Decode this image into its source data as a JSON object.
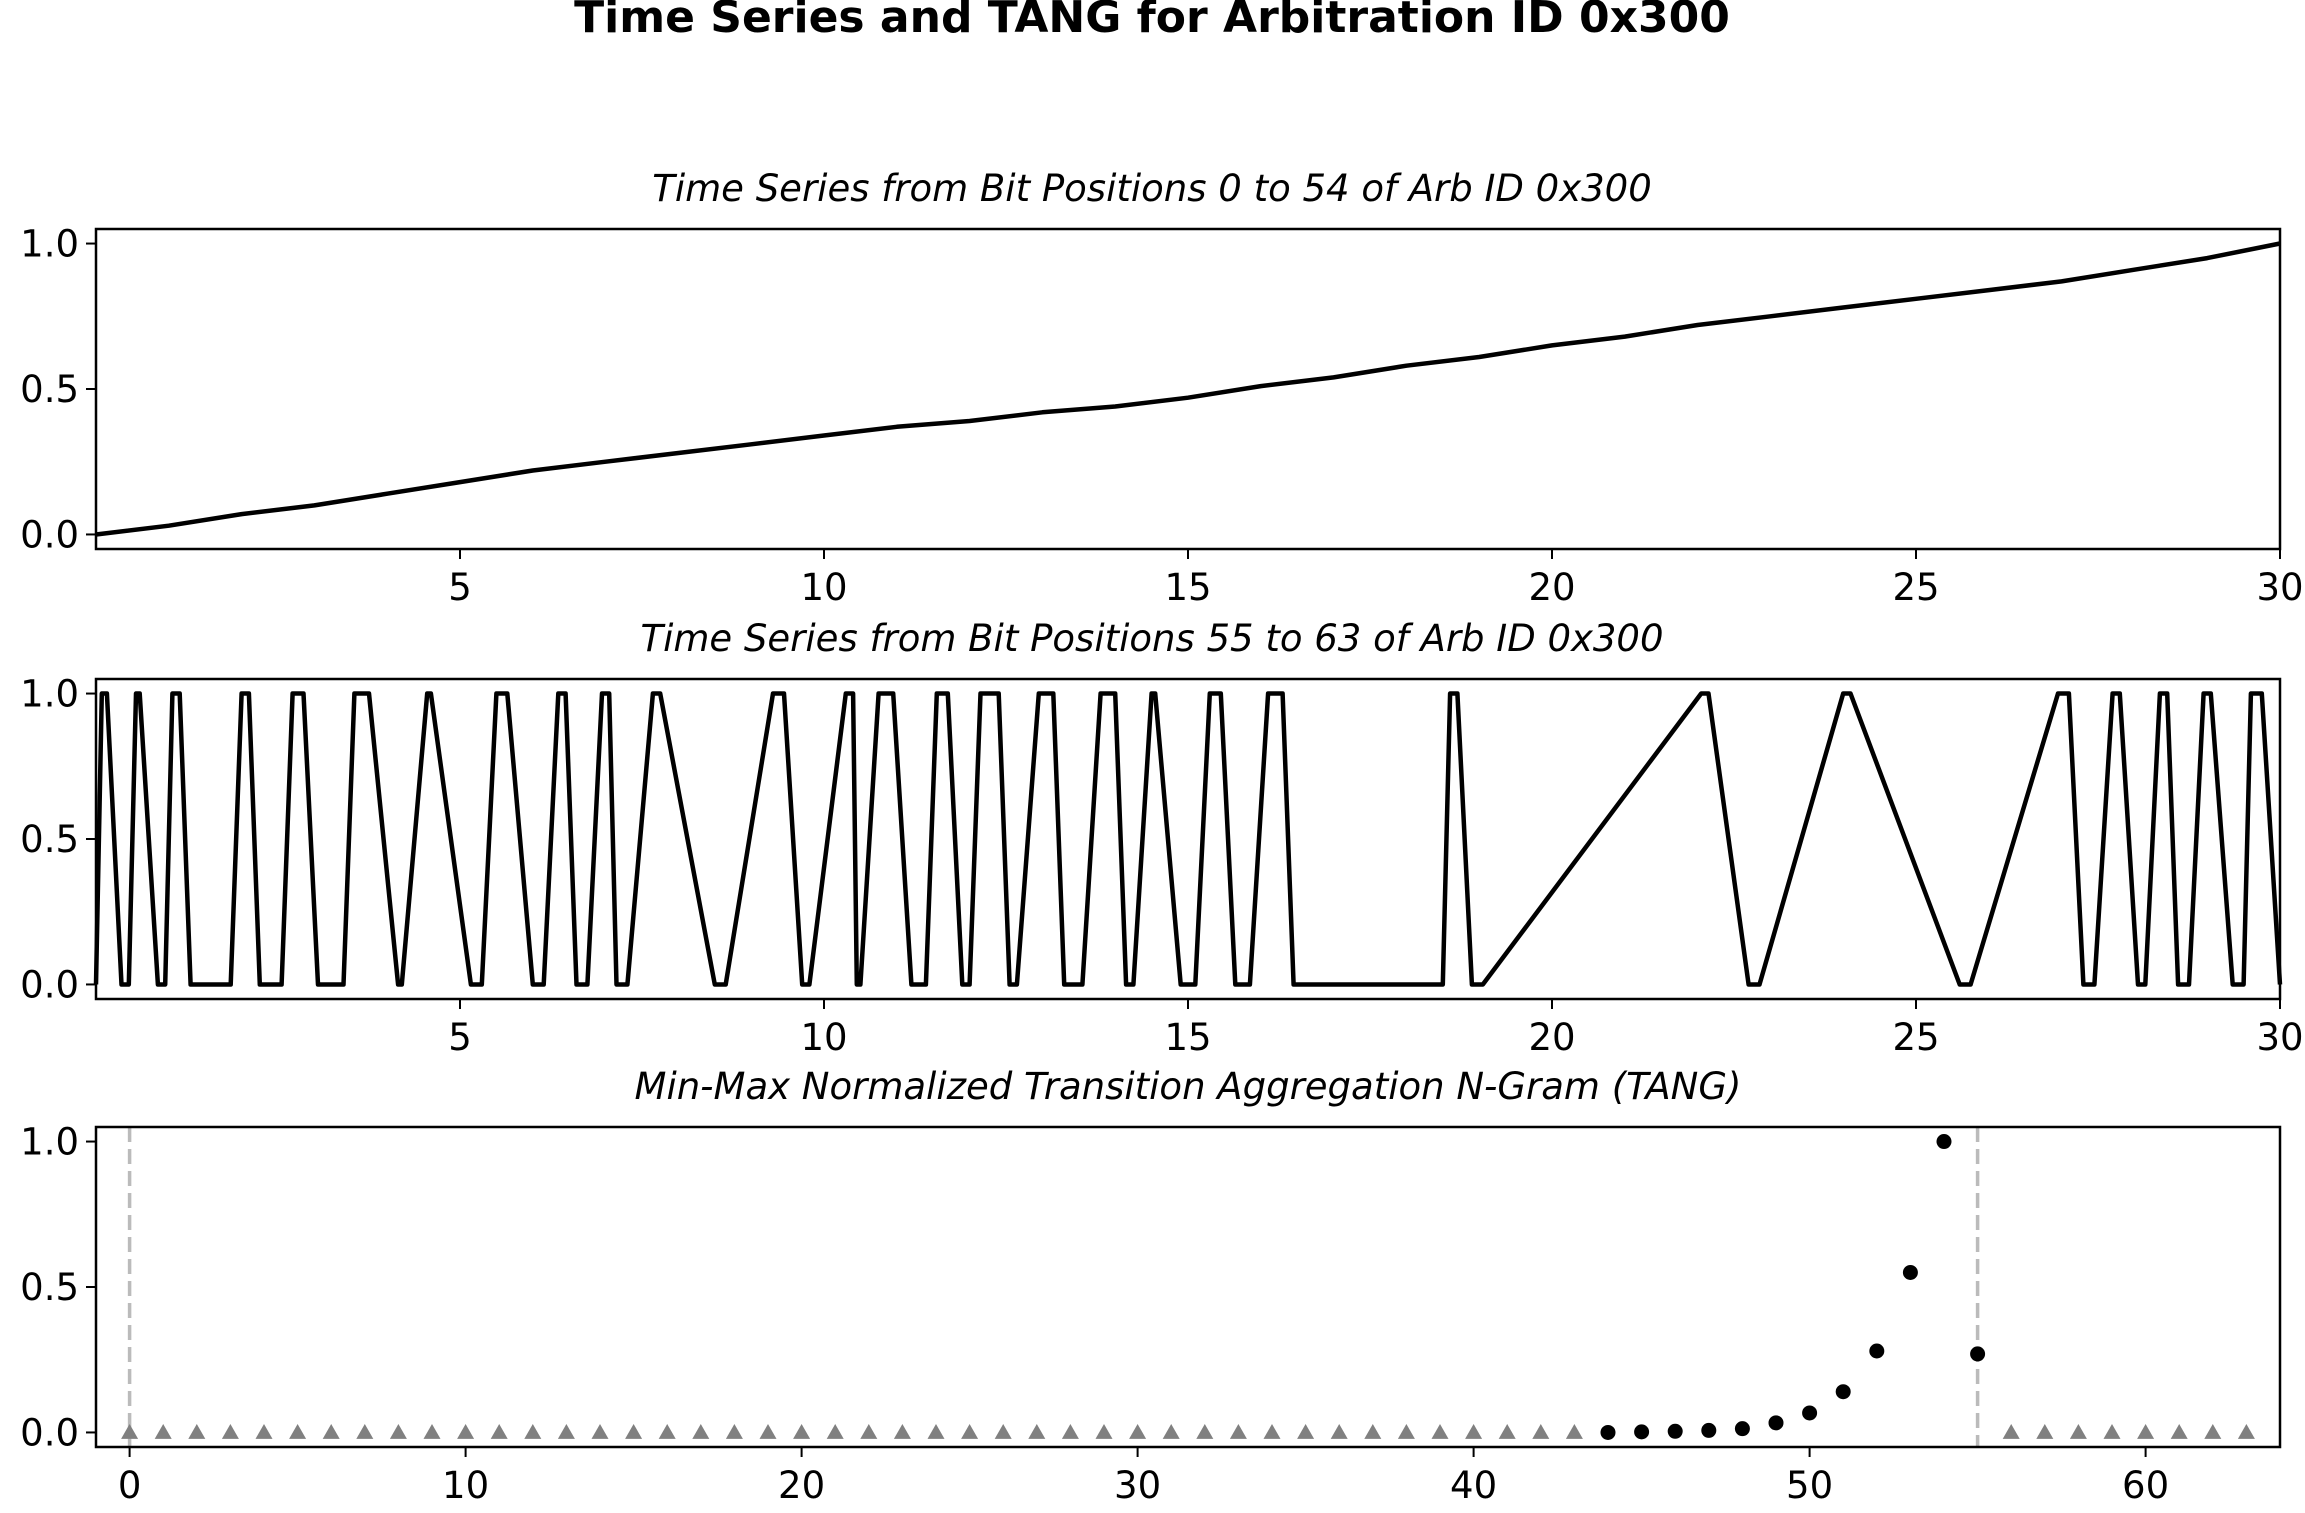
{
  "figure": {
    "title": "Time Series and TANG for Arbitration ID 0x300"
  },
  "chart_data": [
    {
      "type": "line",
      "title": "Time Series from Bit Positions 0 to 54 of Arb ID 0x300",
      "xlim": [
        0,
        30
      ],
      "ylim": [
        -0.05,
        1.05
      ],
      "xticks": [
        5,
        10,
        15,
        20,
        25,
        30
      ],
      "yticks": [
        0.0,
        0.5,
        1.0
      ],
      "xtick_labels": [
        "5",
        "10",
        "15",
        "20",
        "25",
        "30"
      ],
      "ytick_labels": [
        "0.0",
        "0.5",
        "1.0"
      ],
      "color": "#000000",
      "x": [
        0,
        1,
        2,
        3,
        4,
        5,
        6,
        7,
        8,
        9,
        10,
        11,
        12,
        13,
        14,
        15,
        16,
        17,
        18,
        19,
        20,
        21,
        22,
        23,
        24,
        25,
        26,
        27,
        28,
        29,
        30
      ],
      "y": [
        0.0,
        0.03,
        0.07,
        0.1,
        0.14,
        0.18,
        0.22,
        0.25,
        0.28,
        0.31,
        0.34,
        0.37,
        0.39,
        0.42,
        0.44,
        0.47,
        0.51,
        0.54,
        0.58,
        0.61,
        0.65,
        0.68,
        0.72,
        0.75,
        0.78,
        0.81,
        0.84,
        0.87,
        0.91,
        0.95,
        1.0
      ]
    },
    {
      "type": "line",
      "title": "Time Series from Bit Positions 55 to 63 of Arb ID 0x300",
      "xlim": [
        0,
        30
      ],
      "ylim": [
        -0.05,
        1.05
      ],
      "xticks": [
        5,
        10,
        15,
        20,
        25,
        30
      ],
      "yticks": [
        0.0,
        0.5,
        1.0
      ],
      "xtick_labels": [
        "5",
        "10",
        "15",
        "20",
        "25",
        "30"
      ],
      "ytick_labels": [
        "0.0",
        "0.5",
        "1.0"
      ],
      "color": "#000000",
      "x": [
        0.0,
        0.08,
        0.15,
        0.35,
        0.45,
        0.55,
        0.6,
        0.85,
        0.95,
        1.05,
        1.15,
        1.3,
        1.85,
        2.0,
        2.1,
        2.25,
        2.55,
        2.7,
        2.85,
        3.05,
        3.4,
        3.55,
        3.75,
        4.15,
        4.2,
        4.55,
        4.6,
        5.15,
        5.3,
        5.5,
        5.65,
        6.0,
        6.15,
        6.35,
        6.45,
        6.6,
        6.75,
        6.95,
        7.05,
        7.15,
        7.3,
        7.65,
        7.75,
        8.5,
        8.65,
        9.3,
        9.45,
        9.7,
        9.8,
        10.3,
        10.4,
        10.45,
        10.5,
        10.75,
        10.95,
        11.2,
        11.4,
        11.55,
        11.7,
        11.9,
        12.0,
        12.15,
        12.4,
        12.55,
        12.65,
        12.95,
        13.15,
        13.3,
        13.55,
        13.8,
        14.0,
        14.15,
        14.25,
        14.5,
        14.55,
        14.9,
        15.1,
        15.3,
        15.45,
        15.65,
        15.85,
        16.1,
        16.3,
        16.45,
        18.5,
        18.6,
        18.7,
        18.9,
        19.05,
        22.05,
        22.15,
        22.7,
        22.85,
        24.0,
        24.1,
        25.6,
        25.75,
        26.95,
        27.1,
        27.3,
        27.45,
        27.7,
        27.8,
        28.05,
        28.15,
        28.35,
        28.45,
        28.6,
        28.75,
        28.95,
        29.05,
        29.35,
        29.5,
        29.6,
        29.75,
        30.0
      ],
      "y": [
        0,
        1,
        1,
        0,
        0,
        1,
        1,
        0,
        0,
        1,
        1,
        0,
        0,
        1,
        1,
        0,
        0,
        1,
        1,
        0,
        0,
        1,
        1,
        0,
        0,
        1,
        1,
        0,
        0,
        1,
        1,
        0,
        0,
        1,
        1,
        0,
        0,
        1,
        1,
        0,
        0,
        1,
        1,
        0,
        0,
        1,
        1,
        0,
        0,
        1,
        1,
        0,
        0,
        1,
        1,
        0,
        0,
        1,
        1,
        0,
        0,
        1,
        1,
        0,
        0,
        1,
        1,
        0,
        0,
        1,
        1,
        0,
        0,
        1,
        1,
        0,
        0,
        1,
        1,
        0,
        0,
        1,
        1,
        0,
        0,
        1,
        1,
        0,
        0,
        1,
        1,
        0,
        0,
        1,
        1,
        0,
        0,
        1,
        1,
        0,
        0,
        1,
        1,
        0,
        0,
        1,
        1,
        0,
        0,
        1,
        1,
        0,
        0,
        1,
        1,
        0
      ]
    },
    {
      "type": "scatter",
      "title": "Min-Max Normalized Transition Aggregation N-Gram (TANG)",
      "xlim": [
        -1,
        64
      ],
      "ylim": [
        -0.05,
        1.05
      ],
      "xticks": [
        0,
        10,
        20,
        30,
        40,
        50,
        60
      ],
      "yticks": [
        0.0,
        0.5,
        1.0
      ],
      "xtick_labels": [
        "0",
        "10",
        "20",
        "30",
        "40",
        "50",
        "60"
      ],
      "ytick_labels": [
        "0.0",
        "0.5",
        "1.0"
      ],
      "vlines": [
        0,
        55
      ],
      "vline_color": "#bbbbbb",
      "series": [
        {
          "marker": "triangle",
          "color": "#808080",
          "x": [
            0,
            1,
            2,
            3,
            4,
            5,
            6,
            7,
            8,
            9,
            10,
            11,
            12,
            13,
            14,
            15,
            16,
            17,
            18,
            19,
            20,
            21,
            22,
            23,
            24,
            25,
            26,
            27,
            28,
            29,
            30,
            31,
            32,
            33,
            34,
            35,
            36,
            37,
            38,
            39,
            40,
            41,
            42,
            43,
            56,
            57,
            58,
            59,
            60,
            61,
            62,
            63
          ],
          "y": [
            0,
            0,
            0,
            0,
            0,
            0,
            0,
            0,
            0,
            0,
            0,
            0,
            0,
            0,
            0,
            0,
            0,
            0,
            0,
            0,
            0,
            0,
            0,
            0,
            0,
            0,
            0,
            0,
            0,
            0,
            0,
            0,
            0,
            0,
            0,
            0,
            0,
            0,
            0,
            0,
            0,
            0,
            0,
            0,
            0,
            0,
            0,
            0,
            0,
            0,
            0,
            0
          ]
        },
        {
          "marker": "circle",
          "color": "#000000",
          "x": [
            44,
            45,
            46,
            47,
            48,
            49,
            50,
            51,
            52,
            53,
            54,
            55
          ],
          "y": [
            0.0,
            0.002,
            0.004,
            0.007,
            0.013,
            0.033,
            0.067,
            0.14,
            0.28,
            0.55,
            1.0,
            0.27
          ]
        }
      ]
    }
  ]
}
